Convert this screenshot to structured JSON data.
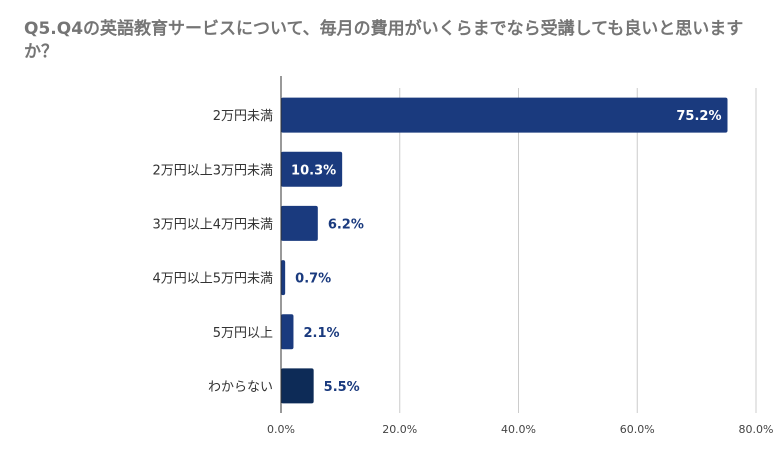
{
  "title": "Q5.Q4の英語教育サービスについて、毎月の費用がいくらまでなら受講しても良いと思いますか？",
  "chart_data": {
    "type": "bar",
    "orientation": "horizontal",
    "title": "Q5.Q4の英語教育サービスについて、毎月の費用がいくらまでなら受講しても良いと思いますか？",
    "categories": [
      "2万円未満",
      "2万円以上3万円未満",
      "3万円以上4万円未満",
      "4万円以上5万円未満",
      "5万円以上",
      "わからない"
    ],
    "values": [
      75.2,
      10.3,
      6.2,
      0.7,
      2.1,
      5.5
    ],
    "data_labels": [
      "75.2%",
      "10.3%",
      "6.2%",
      "0.7%",
      "2.1%",
      "5.5%"
    ],
    "xlim": [
      0,
      80
    ],
    "x_ticks": [
      0,
      20,
      40,
      60,
      80
    ],
    "x_tick_labels": [
      "0.0%",
      "20.0%",
      "40.0%",
      "60.0%",
      "80.0%"
    ],
    "xlabel": "",
    "ylabel": "",
    "grid": true,
    "legend": "none",
    "colors": {
      "bar": "#1a3a7e",
      "bar_dark": "#0d2b57",
      "label_outside": "#1a3a7e",
      "label_inside": "#ffffff",
      "grid": "#cccccc",
      "axis": "#333333",
      "title": "#757575"
    }
  }
}
